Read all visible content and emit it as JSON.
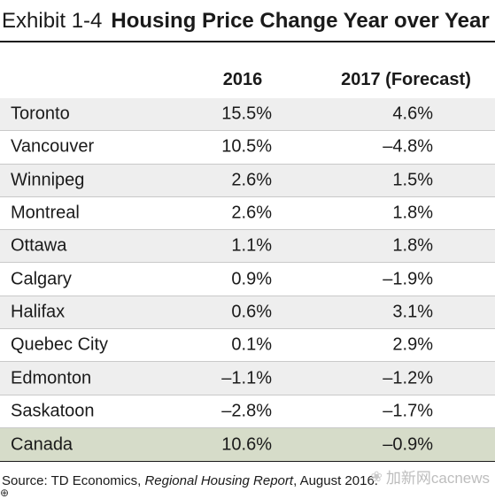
{
  "title": {
    "exhibit": "Exhibit 1-4",
    "main": "Housing Price Change Year over Year"
  },
  "chart_data": {
    "type": "table",
    "columns": [
      "",
      "2016",
      "2017 (Forecast)"
    ],
    "rows": [
      {
        "label": "Toronto",
        "v2016": "15.5%",
        "v2017": "4.6%"
      },
      {
        "label": "Vancouver",
        "v2016": "10.5%",
        "v2017": "–4.8%"
      },
      {
        "label": "Winnipeg",
        "v2016": "2.6%",
        "v2017": "1.5%"
      },
      {
        "label": "Montreal",
        "v2016": "2.6%",
        "v2017": "1.8%"
      },
      {
        "label": "Ottawa",
        "v2016": "1.1%",
        "v2017": "1.8%"
      },
      {
        "label": "Calgary",
        "v2016": "0.9%",
        "v2017": "–1.9%"
      },
      {
        "label": "Halifax",
        "v2016": "0.6%",
        "v2017": "3.1%"
      },
      {
        "label": "Quebec City",
        "v2016": "0.1%",
        "v2017": "2.9%"
      },
      {
        "label": "Edmonton",
        "v2016": "–1.1%",
        "v2017": "–1.2%"
      },
      {
        "label": "Saskatoon",
        "v2016": "–2.8%",
        "v2017": "–1.7%"
      },
      {
        "label": "Canada",
        "v2016": "10.6%",
        "v2017": "–0.9%"
      }
    ]
  },
  "source": {
    "prefix": "Source: TD Economics, ",
    "report": "Regional Housing Report",
    "suffix": ", August 2016."
  },
  "watermark": {
    "icon": "wechat-icon",
    "text": "加新网cacnews"
  },
  "colors": {
    "shade": "#eeeeee",
    "total_shade": "#d6dcc9"
  }
}
